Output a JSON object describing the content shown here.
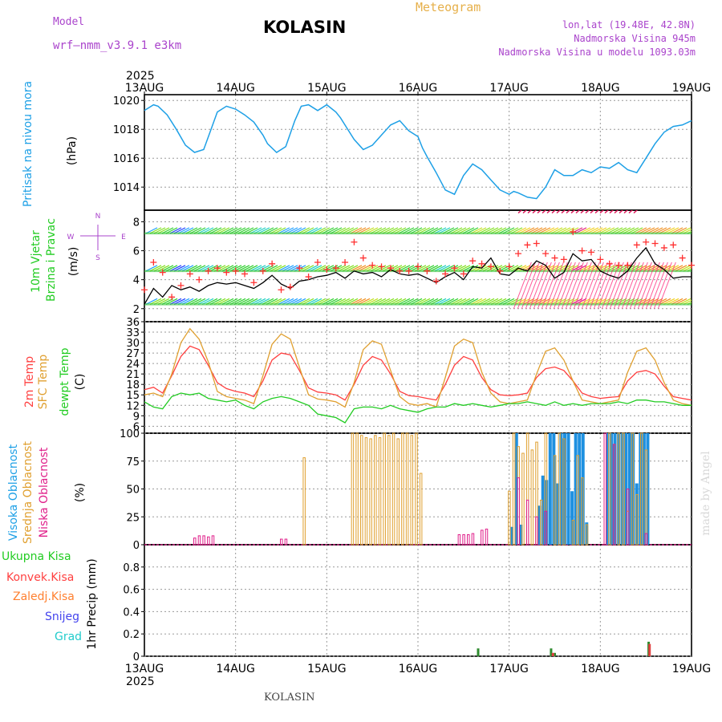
{
  "header": {
    "model_label": "Model",
    "model_name": "wrf—nmm_v3.9.1  e3km",
    "station": "KOLASIN",
    "product": "Meteogram",
    "coords": "lon,lat (19.48E, 42.8N)",
    "altitude": "Nadmorska Visina 945m",
    "model_altitude": "Nadmorska Visina u modelu 1093.03m",
    "footer_station": "KOLASIN",
    "credit": "made by Angel"
  },
  "colors": {
    "pressure": "#1ea0e6",
    "wind_black": "#000000",
    "gust": "#ff3030",
    "temp2m": "#ff4040",
    "sfc": "#e0a030",
    "dew": "#22cc22",
    "high_cloud": "#1e90e0",
    "mid_cloud": "#e0a030",
    "low_cloud": "#e0208a",
    "precip": "#2e8b2e",
    "purple": "#aa44cc"
  },
  "chart_data": [
    {
      "type": "line",
      "title": "Pritisak na nivou mora",
      "ylabel": "(hPa)",
      "ylim": [
        1012.4,
        1020.4
      ],
      "yticks": [
        "1014",
        "1016",
        "1018",
        "1020"
      ],
      "x_days": [
        "13AUG",
        "14AUG",
        "15AUG",
        "16AUG",
        "17AUG",
        "18AUG",
        "19AUG"
      ],
      "year": "2025",
      "x": [
        0,
        0.1,
        0.15,
        0.25,
        0.35,
        0.45,
        0.55,
        0.65,
        0.72,
        0.8,
        0.9,
        1.0,
        1.1,
        1.2,
        1.3,
        1.35,
        1.45,
        1.55,
        1.65,
        1.72,
        1.8,
        1.9,
        2.0,
        2.1,
        2.15,
        2.22,
        2.3,
        2.4,
        2.5,
        2.6,
        2.7,
        2.8,
        2.9,
        3.0,
        3.05,
        3.1,
        3.2,
        3.3,
        3.4,
        3.5,
        3.6,
        3.7,
        3.8,
        3.9,
        4.0,
        4.05,
        4.1,
        4.2,
        4.3,
        4.4,
        4.5,
        4.6,
        4.7,
        4.8,
        4.9,
        5.0,
        5.1,
        5.2,
        5.3,
        5.4,
        5.5,
        5.6,
        5.7,
        5.8,
        5.9,
        6.0
      ],
      "series": [
        {
          "name": "pressure",
          "values": [
            1019.3,
            1019.7,
            1019.6,
            1019.0,
            1018.0,
            1016.9,
            1016.4,
            1016.6,
            1017.8,
            1019.2,
            1019.6,
            1019.4,
            1019.0,
            1018.5,
            1017.6,
            1017.0,
            1016.4,
            1016.8,
            1018.6,
            1019.6,
            1019.7,
            1019.3,
            1019.7,
            1019.2,
            1018.8,
            1018.1,
            1017.3,
            1016.6,
            1016.9,
            1017.6,
            1018.3,
            1018.6,
            1017.9,
            1017.5,
            1016.7,
            1016.1,
            1015.0,
            1013.8,
            1013.5,
            1014.8,
            1015.6,
            1015.2,
            1014.5,
            1013.8,
            1013.5,
            1013.7,
            1013.6,
            1013.3,
            1013.2,
            1014.0,
            1015.2,
            1014.8,
            1014.8,
            1015.2,
            1015.0,
            1015.4,
            1015.3,
            1015.7,
            1015.2,
            1015.0,
            1016.0,
            1017.0,
            1017.8,
            1018.2,
            1018.3,
            1018.6
          ]
        }
      ]
    },
    {
      "type": "line",
      "title": "10m Vjetar Brzina i Pravac",
      "ylabel": "(m/s)",
      "ylim": [
        1.1,
        8.8
      ],
      "yticks": [
        "2",
        "4",
        "6",
        "8"
      ],
      "direction_legend": [
        "N",
        "E",
        "S",
        "W"
      ],
      "x": [
        0,
        0.1,
        0.2,
        0.3,
        0.4,
        0.5,
        0.6,
        0.7,
        0.8,
        0.9,
        1.0,
        1.1,
        1.2,
        1.3,
        1.4,
        1.5,
        1.6,
        1.7,
        1.8,
        1.9,
        2.0,
        2.1,
        2.2,
        2.3,
        2.4,
        2.5,
        2.6,
        2.7,
        2.8,
        2.9,
        3.0,
        3.1,
        3.2,
        3.3,
        3.4,
        3.5,
        3.6,
        3.7,
        3.8,
        3.9,
        4.0,
        4.1,
        4.2,
        4.3,
        4.4,
        4.5,
        4.6,
        4.7,
        4.8,
        4.9,
        5.0,
        5.1,
        5.2,
        5.3,
        5.4,
        5.5,
        5.6,
        5.7,
        5.8,
        5.9,
        6.0
      ],
      "series": [
        {
          "name": "wind",
          "values": [
            2.3,
            3.4,
            2.8,
            3.6,
            3.3,
            3.5,
            3.2,
            3.6,
            3.8,
            3.7,
            3.8,
            3.6,
            3.4,
            3.8,
            4.3,
            3.7,
            3.4,
            3.9,
            4.0,
            4.2,
            4.3,
            4.5,
            4.1,
            4.6,
            4.4,
            4.5,
            4.2,
            4.7,
            4.4,
            4.3,
            4.4,
            4.1,
            3.8,
            4.2,
            4.5,
            4.0,
            4.9,
            4.8,
            5.5,
            4.4,
            4.3,
            4.8,
            4.6,
            5.3,
            5.0,
            4.1,
            4.5,
            5.8,
            5.3,
            5.4,
            4.6,
            4.3,
            4.1,
            4.6,
            5.5,
            6.2,
            5.1,
            4.7,
            4.1,
            4.2,
            4.2
          ]
        },
        {
          "name": "gust",
          "values": [
            3.3,
            5.2,
            4.5,
            2.8,
            3.6,
            4.4,
            4.0,
            4.6,
            4.8,
            4.5,
            4.6,
            4.4,
            3.8,
            4.6,
            5.1,
            3.3,
            3.5,
            4.8,
            4.2,
            5.2,
            4.7,
            4.8,
            5.2,
            6.6,
            5.5,
            5.0,
            4.9,
            4.8,
            4.6,
            4.6,
            4.9,
            4.6,
            3.9,
            4.4,
            4.8,
            4.4,
            5.3,
            5.1,
            4.9,
            4.6,
            4.9,
            5.8,
            6.4,
            6.5,
            5.8,
            5.5,
            5.4,
            7.3,
            6.0,
            5.9,
            5.4,
            5.1,
            5.0,
            5.0,
            6.4,
            6.6,
            6.5,
            6.2,
            6.4,
            5.5,
            5.0
          ]
        }
      ]
    },
    {
      "type": "line",
      "title": "2m Temp / SFC Temp / dewpt Temp",
      "ylabel": "(C)",
      "ylim": [
        4,
        36
      ],
      "yticks": [
        "6",
        "9",
        "12",
        "15",
        "18",
        "21",
        "24",
        "27",
        "30",
        "33",
        "36"
      ],
      "x": [
        0,
        0.1,
        0.2,
        0.3,
        0.4,
        0.5,
        0.6,
        0.7,
        0.8,
        0.9,
        1.0,
        1.1,
        1.2,
        1.3,
        1.4,
        1.5,
        1.6,
        1.7,
        1.8,
        1.9,
        2.0,
        2.1,
        2.2,
        2.3,
        2.4,
        2.5,
        2.6,
        2.7,
        2.8,
        2.9,
        3.0,
        3.1,
        3.2,
        3.3,
        3.4,
        3.5,
        3.6,
        3.7,
        3.8,
        3.9,
        4.0,
        4.1,
        4.2,
        4.3,
        4.4,
        4.5,
        4.6,
        4.7,
        4.8,
        4.9,
        5.0,
        5.1,
        5.2,
        5.3,
        5.4,
        5.5,
        5.6,
        5.7,
        5.8,
        5.9,
        6.0
      ],
      "series": [
        {
          "name": "2m Temp",
          "values": [
            16.5,
            17.2,
            15.5,
            20.5,
            26.0,
            29.0,
            28.0,
            23.5,
            18.5,
            16.8,
            16.0,
            15.5,
            14.5,
            19.0,
            25.0,
            27.0,
            26.5,
            22.0,
            17.0,
            15.8,
            15.5,
            15.0,
            13.5,
            18.0,
            23.5,
            26.0,
            25.0,
            21.0,
            16.0,
            14.8,
            14.5,
            14.0,
            13.5,
            18.0,
            23.5,
            26.0,
            25.0,
            20.0,
            16.5,
            15.0,
            14.8,
            15.0,
            15.5,
            20.0,
            22.5,
            23.0,
            22.0,
            19.0,
            15.5,
            14.5,
            14.0,
            14.3,
            14.5,
            19.0,
            21.5,
            22.0,
            21.0,
            17.5,
            14.5,
            14.0,
            13.5
          ]
        },
        {
          "name": "SFC Temp",
          "values": [
            15.0,
            15.5,
            14.5,
            21.0,
            30.0,
            34.0,
            31.0,
            24.5,
            16.0,
            14.5,
            14.0,
            13.5,
            12.5,
            20.5,
            29.5,
            32.5,
            31.0,
            23.0,
            15.0,
            13.8,
            13.5,
            13.0,
            11.5,
            18.5,
            28.0,
            30.5,
            29.5,
            22.0,
            14.5,
            12.5,
            12.0,
            12.5,
            11.5,
            20.0,
            29.0,
            31.0,
            30.0,
            21.5,
            15.5,
            13.0,
            12.5,
            13.0,
            13.5,
            21.0,
            27.5,
            28.5,
            25.0,
            19.0,
            13.5,
            13.0,
            12.5,
            13.0,
            13.5,
            21.5,
            27.5,
            28.5,
            25.0,
            18.5,
            13.5,
            12.5,
            12.0
          ]
        },
        {
          "name": "dewpt Temp",
          "values": [
            13.0,
            11.5,
            11.0,
            14.5,
            15.5,
            15.0,
            15.5,
            14.0,
            13.5,
            13.0,
            13.5,
            12.0,
            11.0,
            13.0,
            14.0,
            14.5,
            14.0,
            13.0,
            12.0,
            9.5,
            9.0,
            8.5,
            7.0,
            11.0,
            11.5,
            11.5,
            11.0,
            12.0,
            11.0,
            10.5,
            10.0,
            11.0,
            11.5,
            11.5,
            12.5,
            12.0,
            12.5,
            12.0,
            11.5,
            12.0,
            12.5,
            12.5,
            13.0,
            12.5,
            12.0,
            13.0,
            12.0,
            12.5,
            12.0,
            12.5,
            12.5,
            12.5,
            13.0,
            12.5,
            13.5,
            13.5,
            13.0,
            13.0,
            12.5,
            12.0,
            12.0
          ]
        }
      ]
    },
    {
      "type": "bar",
      "title": "Visoka Oblacnost / Srednja Oblacnost / Niska Oblacnost",
      "ylabel": "(%)",
      "ylim": [
        0,
        100
      ],
      "yticks": [
        "0",
        "25",
        "50",
        "75",
        "100"
      ],
      "series": [
        {
          "name": "Visoka Oblacnost",
          "x": [
            4.03,
            4.08,
            4.13,
            4.33,
            4.37,
            4.41,
            4.45,
            4.49,
            4.53,
            4.57,
            4.61,
            4.65,
            4.69,
            4.73,
            4.77,
            4.81,
            4.85,
            5.08,
            5.12,
            5.16,
            5.2,
            5.24,
            5.28,
            5.32,
            5.36,
            5.4,
            5.44,
            5.48,
            5.52
          ],
          "values": [
            16,
            100,
            18,
            35,
            62,
            58,
            100,
            100,
            55,
            100,
            100,
            100,
            48,
            100,
            100,
            100,
            20,
            100,
            100,
            100,
            100,
            100,
            100,
            100,
            100,
            55,
            100,
            100,
            100
          ]
        },
        {
          "name": "Srednja Oblacnost",
          "x": [
            1.75,
            2.28,
            2.33,
            2.38,
            2.43,
            2.48,
            2.53,
            2.58,
            2.63,
            2.68,
            2.73,
            2.78,
            2.83,
            2.88,
            2.93,
            2.98,
            3.03,
            4.0,
            4.05,
            4.1,
            4.15,
            4.2,
            4.25,
            4.3,
            4.35,
            4.4,
            4.5,
            4.55,
            4.6,
            4.7,
            4.75,
            4.8,
            4.85,
            5.05,
            5.1,
            5.15,
            5.2,
            5.25,
            5.3,
            5.35,
            5.4,
            5.45,
            5.5
          ],
          "values": [
            78,
            100,
            100,
            98,
            96,
            95,
            98,
            96,
            100,
            98,
            100,
            95,
            100,
            100,
            98,
            100,
            64,
            48,
            100,
            88,
            82,
            100,
            85,
            92,
            40,
            100,
            80,
            100,
            95,
            22,
            80,
            60,
            18,
            100,
            100,
            90,
            100,
            100,
            30,
            100,
            45,
            100,
            85
          ]
        },
        {
          "name": "Niska Oblacnost",
          "x": [
            0.55,
            0.6,
            0.65,
            0.7,
            0.75,
            1.5,
            1.55,
            3.45,
            3.5,
            3.55,
            3.6,
            3.7,
            3.75,
            4.1,
            4.2,
            4.3,
            4.4,
            5.05,
            5.15,
            5.3,
            5.5
          ],
          "values": [
            6,
            8,
            8,
            7,
            8,
            5,
            5,
            9,
            9,
            9,
            10,
            13,
            14,
            60,
            40,
            25,
            30,
            100,
            90,
            50,
            10
          ]
        }
      ]
    },
    {
      "type": "bar",
      "title": "1hr Precip",
      "ylabel": "1hr Precip (mm)",
      "ylim": [
        0,
        1.0
      ],
      "yticks": [
        "0",
        "0.2",
        "0.4",
        "0.6",
        "0.8"
      ],
      "legend": [
        "Ukupna Kisa",
        "Konvek.Kisa",
        "Zaledj.Kisa",
        "Snijeg",
        "Grad"
      ],
      "series": [
        {
          "name": "Ukupna Kisa",
          "x": [
            3.66,
            4.46,
            4.5,
            5.53
          ],
          "values": [
            0.07,
            0.07,
            0.03,
            0.13
          ]
        },
        {
          "name": "Konvek.Kisa",
          "x": [
            4.48,
            5.54
          ],
          "values": [
            0.03,
            0.11
          ]
        }
      ]
    }
  ]
}
